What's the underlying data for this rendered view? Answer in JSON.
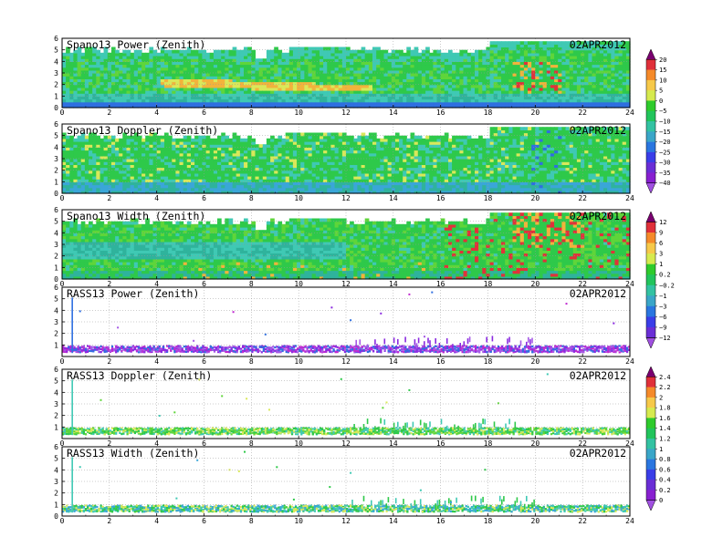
{
  "chart_data": [
    {
      "type": "heatmap",
      "title": "Spano13 Power (Zenith)",
      "date_label": "02APR2012",
      "x": [
        0,
        24
      ],
      "xticks": [
        0,
        2,
        4,
        6,
        8,
        10,
        12,
        14,
        16,
        18,
        20,
        22,
        24
      ],
      "xlim": [
        0,
        24
      ],
      "yticks": [
        0,
        1,
        2,
        3,
        4,
        5,
        6
      ],
      "ylim": [
        0,
        6
      ],
      "z_levels": [
        -40,
        -35,
        -30,
        -25,
        -20,
        -15,
        -10,
        -5,
        0,
        5,
        10,
        15,
        20
      ],
      "colorbar_labels": [
        "20",
        "15",
        "10",
        "5",
        "0",
        "−5",
        "−10",
        "−15",
        "−20",
        "−25",
        "−30",
        "−35",
        "−40"
      ],
      "colorbar_colors": [
        "#7a0070",
        "#e0303a",
        "#f58a2a",
        "#f6c94a",
        "#d6ea4f",
        "#2ecb2c",
        "#22c45c",
        "#33c2a2",
        "#3aa6c8",
        "#2a76e0",
        "#3a3ee8",
        "#6a2ed6",
        "#8820d0",
        "#a050e0"
      ],
      "grid": true,
      "colorbar": "right"
    },
    {
      "type": "heatmap",
      "title": "Spano13 Doppler (Zenith)",
      "date_label": "02APR2012",
      "xticks": [
        0,
        2,
        4,
        6,
        8,
        10,
        12,
        14,
        16,
        18,
        20,
        22,
        24
      ],
      "xlim": [
        0,
        24
      ],
      "yticks": [
        0,
        1,
        2,
        3,
        4,
        5,
        6
      ],
      "ylim": [
        0,
        6
      ],
      "grid": true,
      "colorbar": "shared with Spano13 Power"
    },
    {
      "type": "heatmap",
      "title": "Spano13 Width (Zenith)",
      "date_label": "02APR2012",
      "xticks": [
        0,
        2,
        4,
        6,
        8,
        10,
        12,
        14,
        16,
        18,
        20,
        22,
        24
      ],
      "xlim": [
        0,
        24
      ],
      "yticks": [
        0,
        1,
        2,
        3,
        4,
        5,
        6
      ],
      "ylim": [
        0,
        6
      ],
      "z_levels": [
        -12,
        -9,
        -6,
        -3,
        -1,
        -0.2,
        0.2,
        1,
        3,
        6,
        9,
        12
      ],
      "colorbar_labels": [
        "12",
        "9",
        "6",
        "3",
        "1",
        "0.2",
        "−0.2",
        "−1",
        "−3",
        "−6",
        "−9",
        "−12"
      ],
      "colorbar_colors": [
        "#7a0070",
        "#e0303a",
        "#f58a2a",
        "#f6c94a",
        "#d6ea4f",
        "#2ecb2c",
        "#22c45c",
        "#33c2a2",
        "#3aa6c8",
        "#2a76e0",
        "#3a3ee8",
        "#6a2ed6",
        "#a050e0"
      ],
      "grid": true,
      "colorbar": "right"
    },
    {
      "type": "heatmap",
      "title": "RASS13 Power (Zenith)",
      "date_label": "02APR2012",
      "xticks": [
        0,
        2,
        4,
        6,
        8,
        10,
        12,
        14,
        16,
        18,
        20,
        22,
        24
      ],
      "xlim": [
        0,
        24
      ],
      "yticks": [
        1,
        2,
        3,
        4,
        5,
        6
      ],
      "ylim": [
        0,
        6
      ],
      "grid": true,
      "colorbar": "shared with Spano13 Width"
    },
    {
      "type": "heatmap",
      "title": "RASS13 Doppler (Zenith)",
      "date_label": "02APR2012",
      "xticks": [
        0,
        2,
        4,
        6,
        8,
        10,
        12,
        14,
        16,
        18,
        20,
        22,
        24
      ],
      "xlim": [
        0,
        24
      ],
      "yticks": [
        1,
        2,
        3,
        4,
        5,
        6
      ],
      "ylim": [
        0,
        6
      ],
      "z_levels": [
        0,
        0.2,
        0.4,
        0.6,
        0.8,
        1,
        1.2,
        1.4,
        1.6,
        1.8,
        2,
        2.2,
        2.4
      ],
      "colorbar_labels": [
        "2.4",
        "2.2",
        "2",
        "1.8",
        "1.6",
        "1.4",
        "1.2",
        "1",
        "0.8",
        "0.6",
        "0.4",
        "0.2",
        "0"
      ],
      "colorbar_colors": [
        "#7a0070",
        "#e0303a",
        "#f58a2a",
        "#f6c94a",
        "#d6ea4f",
        "#2ecb2c",
        "#22c45c",
        "#33c2a2",
        "#3aa6c8",
        "#2a76e0",
        "#3a3ee8",
        "#6a2ed6",
        "#8820d0",
        "#a050e0"
      ],
      "grid": true,
      "colorbar": "right"
    },
    {
      "type": "heatmap",
      "title": "RASS13 Width (Zenith)",
      "date_label": "02APR2012",
      "xticks": [
        0,
        2,
        4,
        6,
        8,
        10,
        12,
        14,
        16,
        18,
        20,
        22,
        24
      ],
      "xlim": [
        0,
        24
      ],
      "yticks": [
        0,
        1,
        2,
        3,
        4,
        5,
        6
      ],
      "ylim": [
        0,
        6
      ],
      "grid": true,
      "colorbar": "shared with RASS13 Doppler"
    }
  ]
}
